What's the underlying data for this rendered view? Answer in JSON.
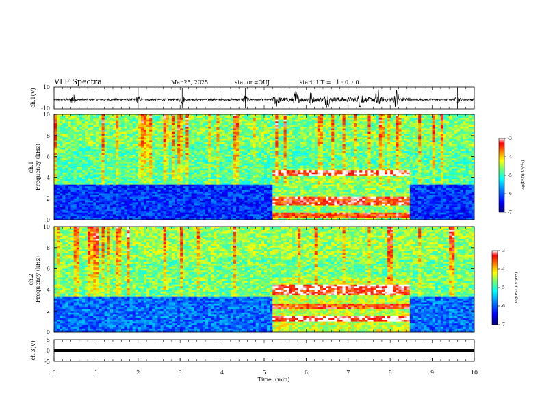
{
  "header": {
    "title": "VLF Spectra",
    "date": "Mar.25, 2025",
    "station": "station=OUJ",
    "start": "start  UT =   1 : 0  : 0"
  },
  "colors": {
    "background": "#ffffff",
    "ink": "#000000",
    "colormap": [
      "#000080",
      "#0000ff",
      "#0080ff",
      "#00ffff",
      "#80ff80",
      "#ffff00",
      "#ff8000",
      "#ff0000",
      "#ffffff"
    ]
  },
  "chart_data": [
    {
      "type": "line",
      "panel": "ch1-waveform",
      "ylabel": "ch.1(V)",
      "ylim": [
        -10,
        10
      ],
      "yticks": [
        "10",
        "-10"
      ],
      "xlim": [
        0,
        10
      ],
      "baseline": -1.5,
      "events": [
        {
          "t": 0.45,
          "amp": 5.0
        },
        {
          "t": 2.0,
          "amp": 3.0
        },
        {
          "t": 3.05,
          "amp": 4.5
        },
        {
          "t": 4.55,
          "amp": 4.0
        },
        {
          "t": 5.3,
          "amp": 5.5
        },
        {
          "t": 5.75,
          "amp": 7.0
        },
        {
          "t": 6.1,
          "amp": 6.0
        },
        {
          "t": 6.5,
          "amp": 6.5
        },
        {
          "t": 7.3,
          "amp": 8.0
        },
        {
          "t": 7.7,
          "amp": 9.0
        },
        {
          "t": 8.15,
          "amp": 8.5
        },
        {
          "t": 9.6,
          "amp": 3.0
        }
      ]
    },
    {
      "type": "heatmap",
      "panel": "ch1-spectrogram",
      "ylabel": "ch.1\nFrequency (kHz)",
      "ylim": [
        0,
        10
      ],
      "yticks": [
        "0",
        "2",
        "4",
        "6",
        "8",
        "10"
      ],
      "xlim": [
        0,
        10
      ],
      "colorbar": {
        "label": "log(PSD)(V²/Hz)",
        "range": [
          -7,
          -3
        ],
        "ticks": [
          "-7",
          "-6",
          "-5",
          "-4",
          "-3"
        ]
      },
      "regions": [
        {
          "t": [
            0,
            5.2
          ],
          "f": [
            0,
            3.4
          ],
          "level": -6.2
        },
        {
          "t": [
            0,
            10
          ],
          "f": [
            3.4,
            10
          ],
          "level": -4.8
        },
        {
          "t": [
            5.2,
            8.5
          ],
          "f": [
            0,
            4.8
          ],
          "level": -4.6
        },
        {
          "t": [
            8.5,
            10
          ],
          "f": [
            0,
            3.4
          ],
          "level": -6.2
        }
      ],
      "bands": [
        {
          "t": [
            5.2,
            8.5
          ],
          "f": 4.4,
          "level": -3.2
        },
        {
          "t": [
            5.2,
            8.5
          ],
          "f": 1.5,
          "level": -3.3
        },
        {
          "t": [
            5.2,
            8.5
          ],
          "f": 1.9,
          "level": -3.4
        },
        {
          "t": [
            5.2,
            8.5
          ],
          "f": 0.4,
          "level": -3.5
        }
      ]
    },
    {
      "type": "heatmap",
      "panel": "ch2-spectrogram",
      "ylabel": "ch.2\nFrequency (kHz)",
      "ylim": [
        0,
        10
      ],
      "yticks": [
        "0",
        "2",
        "4",
        "6",
        "8",
        "10"
      ],
      "xlim": [
        0,
        10
      ],
      "colorbar": {
        "label": "log(PSD)(V²/Hz)",
        "range": [
          -7,
          -3
        ],
        "ticks": [
          "-7",
          "-6",
          "-5",
          "-4",
          "-3"
        ]
      },
      "regions": [
        {
          "t": [
            0,
            5.2
          ],
          "f": [
            0,
            3.4
          ],
          "level": -5.9
        },
        {
          "t": [
            0,
            10
          ],
          "f": [
            3.4,
            10
          ],
          "level": -4.7
        },
        {
          "t": [
            5.2,
            8.5
          ],
          "f": [
            0,
            5.2
          ],
          "level": -4.4
        },
        {
          "t": [
            8.5,
            10
          ],
          "f": [
            0,
            3.4
          ],
          "level": -5.9
        }
      ],
      "bands": [
        {
          "t": [
            5.2,
            8.5
          ],
          "f": 4.2,
          "level": -3.2
        },
        {
          "t": [
            5.2,
            8.5
          ],
          "f": 3.8,
          "level": -3.3
        },
        {
          "t": [
            5.2,
            8.5
          ],
          "f": 1.2,
          "level": -3.1
        },
        {
          "t": [
            5.2,
            8.5
          ],
          "f": 2.4,
          "level": -3.5
        }
      ]
    },
    {
      "type": "line",
      "panel": "ch3-waveform",
      "ylabel": "ch.3(V)",
      "ylim": [
        -5,
        5
      ],
      "yticks": [
        "5",
        "0",
        "-5"
      ],
      "xlim": [
        0,
        10
      ],
      "value": 0,
      "xlabel": "Time  (min)",
      "xticks": [
        "0",
        "1",
        "2",
        "3",
        "4",
        "5",
        "6",
        "7",
        "8",
        "9",
        "10"
      ]
    }
  ]
}
